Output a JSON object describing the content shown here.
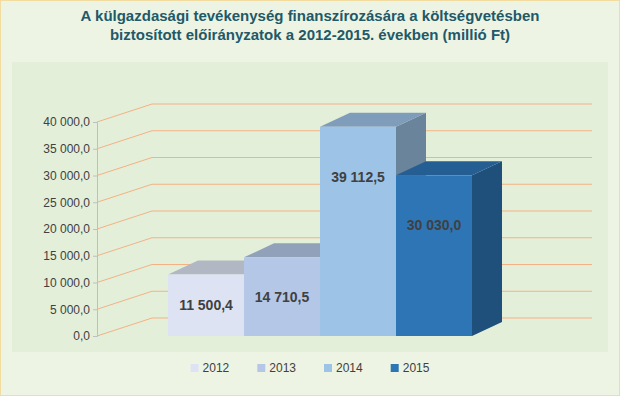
{
  "chart_data": {
    "type": "bar",
    "title": "A külgazdasági tevékenység finanszírozására a költségvetésben biztosított előirányzatok a 2012-2015. években (millió Ft)",
    "categories": [
      "2012",
      "2013",
      "2014",
      "2015"
    ],
    "values": [
      11500.4,
      14710.5,
      39112.5,
      30030.0
    ],
    "value_labels": [
      "11 500,4",
      "14 710,5",
      "39 112,5",
      "30 030,0"
    ],
    "colors": [
      "#dde3f3",
      "#b4c7e7",
      "#9dc3e6",
      "#2e75b6"
    ],
    "ylim": [
      0,
      40000
    ],
    "yticks": [
      {
        "value": 0,
        "label": "0,0"
      },
      {
        "value": 5000,
        "label": "5 000,0"
      },
      {
        "value": 10000,
        "label": "10 000,0"
      },
      {
        "value": 15000,
        "label": "15 000,0"
      },
      {
        "value": 20000,
        "label": "20 000,0"
      },
      {
        "value": 25000,
        "label": "25 000,0"
      },
      {
        "value": 30000,
        "label": "30 000,0"
      },
      {
        "value": 35000,
        "label": "35 000,0"
      },
      {
        "value": 40000,
        "label": "40 000,0"
      }
    ],
    "grid": true,
    "data_labels": true,
    "legend": "bottom",
    "tick_labels": "y"
  }
}
